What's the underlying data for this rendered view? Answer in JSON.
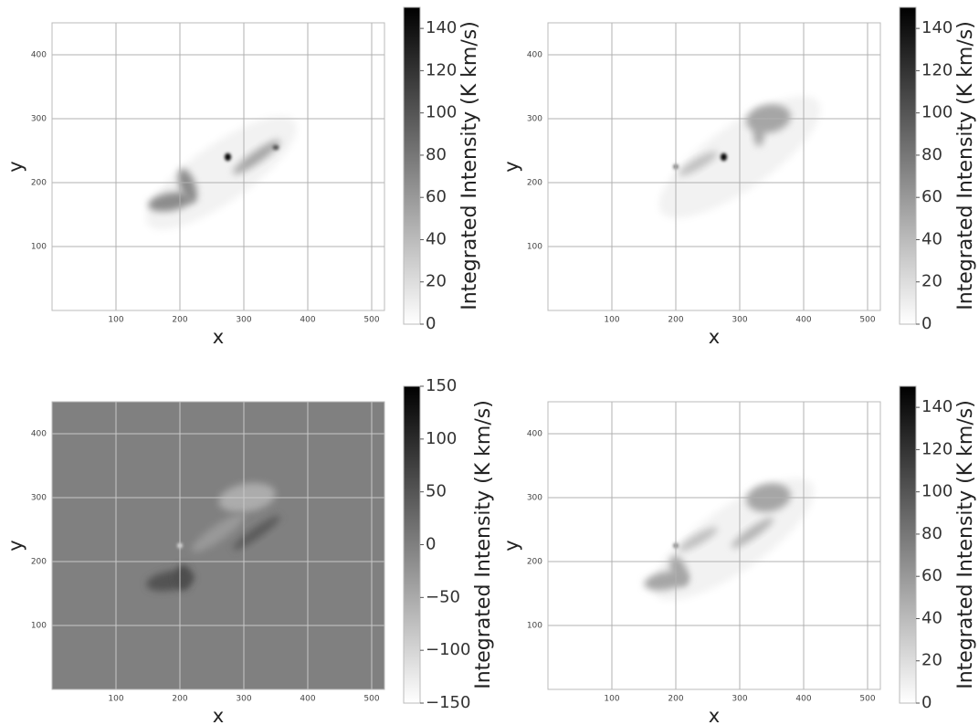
{
  "chart_data": [
    {
      "type": "heatmap",
      "xlabel": "x",
      "ylabel": "y",
      "xlim": [
        0,
        520
      ],
      "ylim": [
        0,
        450
      ],
      "xticks": [
        100,
        200,
        300,
        400,
        500
      ],
      "yticks": [
        100,
        200,
        300,
        400
      ],
      "grid": true,
      "background": "#ffffff",
      "colorbar": {
        "label": "Integrated Intensity (K km/s)",
        "clim": [
          0,
          150
        ],
        "cticks": [
          0,
          20,
          40,
          60,
          80,
          100,
          120,
          140
        ],
        "colors": [
          "#ffffff",
          "#000000"
        ]
      }
    },
    {
      "type": "heatmap",
      "xlabel": "x",
      "ylabel": "y",
      "xlim": [
        0,
        520
      ],
      "ylim": [
        0,
        450
      ],
      "xticks": [
        100,
        200,
        300,
        400,
        500
      ],
      "yticks": [
        100,
        200,
        300,
        400
      ],
      "grid": true,
      "background": "#ffffff",
      "colorbar": {
        "label": "Integrated Intensity (K km/s)",
        "clim": [
          0,
          150
        ],
        "cticks": [
          0,
          20,
          40,
          60,
          80,
          100,
          120,
          140
        ],
        "colors": [
          "#ffffff",
          "#000000"
        ]
      }
    },
    {
      "type": "heatmap",
      "xlabel": "x",
      "ylabel": "y",
      "xlim": [
        0,
        520
      ],
      "ylim": [
        0,
        450
      ],
      "xticks": [
        100,
        200,
        300,
        400,
        500
      ],
      "yticks": [
        100,
        200,
        300,
        400
      ],
      "grid": true,
      "background": "#808080",
      "colorbar": {
        "label": "Integrated Intensity (K km/s)",
        "clim": [
          -150,
          150
        ],
        "cticks": [
          {
            "value": -150,
            "label": "−150"
          },
          {
            "value": -100,
            "label": "−100"
          },
          {
            "value": -50,
            "label": "−50"
          },
          0,
          50,
          100,
          150
        ],
        "colors": [
          "#ffffff",
          "#000000"
        ]
      }
    },
    {
      "type": "heatmap",
      "xlabel": "x",
      "ylabel": "y",
      "xlim": [
        0,
        520
      ],
      "ylim": [
        0,
        450
      ],
      "xticks": [
        100,
        200,
        300,
        400,
        500
      ],
      "yticks": [
        100,
        200,
        300,
        400
      ],
      "grid": true,
      "background": "#ffffff",
      "colorbar": {
        "label": "Integrated Intensity (K km/s)",
        "clim": [
          0,
          150
        ],
        "cticks": [
          0,
          20,
          40,
          60,
          80,
          100,
          120,
          140
        ],
        "colors": [
          "#ffffff",
          "#000000"
        ]
      }
    }
  ]
}
